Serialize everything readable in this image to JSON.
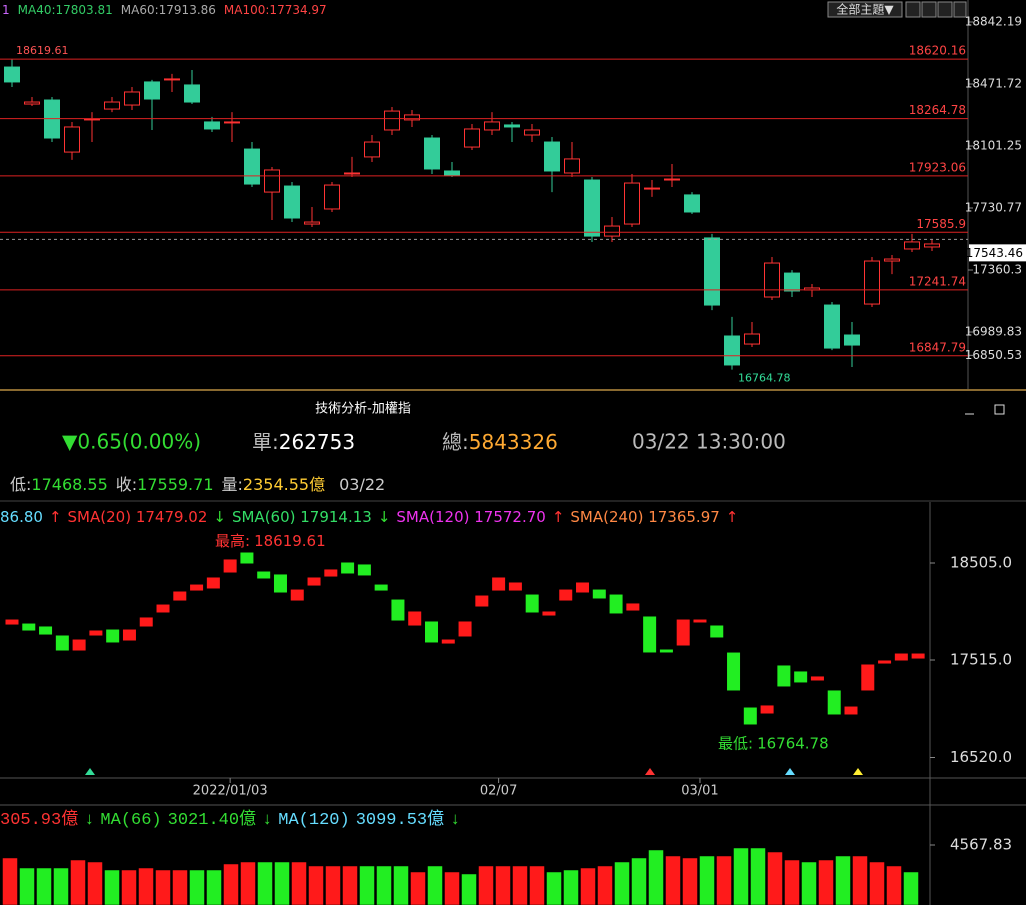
{
  "chart_data": [
    {
      "type": "candlestick",
      "header": [
        {
          "text": "1",
          "color": "#cc66ff"
        },
        {
          "text": "MA40:17803.81",
          "color": "#33cc66"
        },
        {
          "text": "MA60:17913.86",
          "color": "#aaaaaa"
        },
        {
          "text": "MA100:17734.97",
          "color": "#ff4444"
        }
      ],
      "button": "全部主題▼",
      "ylim": [
        16643.4,
        18973.6
      ],
      "yticks": [
        18842.19,
        18471.72,
        18101.25,
        17730.77,
        17360.3,
        16989.83,
        16850.53
      ],
      "levels": [
        18620.16,
        18264.78,
        17923.06,
        17585.9,
        17241.74,
        16847.79
      ],
      "last_price": 17543.46,
      "up_color": "#ff3333",
      "down_color": "#33cc99",
      "open": [
        18573,
        18352,
        18376,
        18065,
        18257,
        18322,
        18346,
        18484,
        18496,
        18466,
        18245,
        18239,
        18083,
        17826,
        17862,
        17635,
        17725,
        17934,
        18036,
        18197,
        18257,
        18149,
        17952,
        18095,
        18197,
        18227,
        18167,
        18125,
        17940,
        17898,
        17563,
        17635,
        17844,
        17898,
        17809,
        17552,
        16966,
        16918,
        17199,
        17342,
        17241,
        17151,
        16972,
        17157,
        17414,
        17486,
        17498
      ],
      "high": [
        18619.61,
        18394,
        18394,
        18245,
        18304,
        18394,
        18454,
        18496,
        18532,
        18555,
        18275,
        18304,
        18125,
        17976,
        17886,
        17737,
        17886,
        18036,
        18167,
        18334,
        18316,
        18167,
        18006,
        18233,
        18304,
        18245,
        18233,
        18155,
        18125,
        17916,
        17677,
        17934,
        17898,
        17994,
        17826,
        17576,
        17080,
        17050,
        17438,
        17360,
        17277,
        17169,
        17050,
        17438,
        17450,
        17576,
        17546
      ],
      "low": [
        18454,
        18340,
        18125,
        18018,
        18125,
        18304,
        18316,
        18197,
        18424,
        18352,
        18185,
        18125,
        17856,
        17659,
        17647,
        17617,
        17707,
        17916,
        18006,
        18167,
        18215,
        17934,
        17916,
        18077,
        18167,
        18125,
        18125,
        17826,
        17916,
        17528,
        17528,
        17617,
        17797,
        17856,
        17695,
        17121,
        16764.78,
        16900,
        17181,
        17199,
        17199,
        16882,
        16781,
        17139,
        17336,
        17468,
        17474
      ],
      "close": [
        18484,
        18364,
        18149,
        18215,
        18263,
        18364,
        18424,
        18382,
        18502,
        18364,
        18203,
        18245,
        17874,
        17958,
        17671,
        17647,
        17868,
        17940,
        18125,
        18310,
        18287,
        17964,
        17928,
        18203,
        18245,
        18215,
        18197,
        17952,
        18024,
        17563,
        17623,
        17880,
        17850,
        17904,
        17707,
        17151,
        16793,
        16978,
        17402,
        17235,
        17253,
        16894,
        16912,
        17414,
        17426,
        17528,
        17516
      ]
    },
    {
      "type": "candlestick",
      "legend": [
        {
          "text": "86.80",
          "color": "#66ddff"
        },
        {
          "text": "↑",
          "color": "#ff3333"
        },
        {
          "text": "SMA(20) 17479.02",
          "color": "#ff3333"
        },
        {
          "text": "↓",
          "color": "#33dd33"
        },
        {
          "text": "SMA(60) 17914.13",
          "color": "#33dd66"
        },
        {
          "text": "↓",
          "color": "#33dd33"
        },
        {
          "text": "SMA(120) 17572.70",
          "color": "#ee33ee"
        },
        {
          "text": "↑",
          "color": "#ff3333"
        },
        {
          "text": "SMA(240) 17365.97",
          "color": "#ff8844"
        },
        {
          "text": "↑",
          "color": "#ff3333"
        }
      ],
      "ylim": [
        16310.7,
        19127.6
      ],
      "yticks": [
        {
          "value": 18505,
          "label": "18505.0"
        },
        {
          "value": 17515,
          "label": "17515.0"
        },
        {
          "value": 16520,
          "label": "16520.0"
        }
      ],
      "categories": [
        null,
        null,
        null,
        null,
        null,
        null,
        null,
        null,
        null,
        null,
        null,
        null,
        null,
        "2022/01/03",
        null,
        null,
        null,
        null,
        null,
        null,
        null,
        null,
        null,
        null,
        null,
        null,
        null,
        null,
        null,
        "02/07",
        null,
        null,
        null,
        null,
        null,
        null,
        null,
        null,
        null,
        null,
        null,
        "03/01",
        null,
        null,
        null,
        null,
        null,
        null,
        null,
        null,
        null,
        null,
        null,
        null,
        null
      ],
      "annotations": [
        {
          "label": "最高:",
          "value": 18619.61,
          "color": "#ff3333"
        },
        {
          "label": "最低:",
          "value": 16764.78,
          "color": "#33dd33"
        }
      ],
      "up_color": "#ff1a1a",
      "down_color": "#22ee22",
      "open": [
        17882,
        17882,
        17852,
        17760,
        17617,
        17770,
        17821,
        17719,
        17862,
        18005,
        18127,
        18229,
        18250,
        18413,
        18607,
        18413,
        18383,
        18127,
        18280,
        18372,
        18505,
        18485,
        18280,
        18127,
        17872,
        17903,
        17688,
        17760,
        18066,
        18229,
        18229,
        18178,
        17974,
        18127,
        18209,
        18229,
        18178,
        18025,
        17954,
        17617,
        17668,
        17903,
        17862,
        17586,
        17025,
        16974,
        17454,
        17393,
        17311,
        17199,
        16964,
        17209,
        17484,
        17515,
        17535
      ],
      "close": [
        17923,
        17821,
        17780,
        17617,
        17719,
        17811,
        17699,
        17821,
        17944,
        18076,
        18209,
        18280,
        18352,
        18536,
        18505,
        18352,
        18209,
        18229,
        18352,
        18434,
        18403,
        18383,
        18229,
        17923,
        18005,
        17699,
        17719,
        17903,
        18168,
        18352,
        18301,
        18005,
        18005,
        18229,
        18301,
        18148,
        17995,
        18087,
        17597,
        17597,
        17923,
        17923,
        17750,
        17209,
        16862,
        17046,
        17250,
        17291,
        17342,
        16964,
        17035,
        17464,
        17505,
        17576,
        17576
      ]
    },
    {
      "type": "bar",
      "legend": [
        {
          "text": "305.93億",
          "color": "#ff3333"
        },
        {
          "text": "↓",
          "color": "#33dd33"
        },
        {
          "text": "MA(66)",
          "color": "#33dd33"
        },
        {
          "text": "3021.40億",
          "color": "#33dd33"
        },
        {
          "text": "↓",
          "color": "#33dd33"
        },
        {
          "text": "MA(120)",
          "color": "#66ddff"
        },
        {
          "text": "3099.53億",
          "color": "#66ddff"
        },
        {
          "text": "↓",
          "color": "#33dd33"
        }
      ],
      "ylim": [
        2610,
        5840
      ],
      "yticks": [
        4567.83
      ],
      "values": [
        4144,
        3817,
        3817,
        3817,
        4078,
        4013,
        3752,
        3752,
        3817,
        3752,
        3752,
        3752,
        3752,
        3948,
        4013,
        4013,
        4013,
        4013,
        3883,
        3883,
        3883,
        3883,
        3883,
        3883,
        3687,
        3883,
        3687,
        3622,
        3883,
        3883,
        3883,
        3883,
        3687,
        3752,
        3817,
        3883,
        4013,
        4144,
        4405,
        4209,
        4144,
        4209,
        4209,
        4470,
        4470,
        4339,
        4078,
        4013,
        4078,
        4209,
        4209,
        4013,
        3883,
        3687
      ],
      "colors": [
        "#ff1a1a",
        "#22ee22",
        "#22ee22",
        "#22ee22",
        "#ff1a1a",
        "#ff1a1a",
        "#22ee22",
        "#ff1a1a",
        "#ff1a1a",
        "#ff1a1a",
        "#ff1a1a",
        "#22ee22",
        "#22ee22",
        "#ff1a1a",
        "#ff1a1a",
        "#22ee22",
        "#22ee22",
        "#ff1a1a",
        "#ff1a1a",
        "#ff1a1a",
        "#ff1a1a",
        "#22ee22",
        "#22ee22",
        "#22ee22",
        "#ff1a1a",
        "#22ee22",
        "#ff1a1a",
        "#22ee22",
        "#ff1a1a",
        "#ff1a1a",
        "#ff1a1a",
        "#ff1a1a",
        "#22ee22",
        "#22ee22",
        "#ff1a1a",
        "#ff1a1a",
        "#22ee22",
        "#22ee22",
        "#22ee22",
        "#ff1a1a",
        "#ff1a1a",
        "#22ee22",
        "#ff1a1a",
        "#22ee22",
        "#22ee22",
        "#ff1a1a",
        "#ff1a1a",
        "#22ee22",
        "#ff1a1a",
        "#22ee22",
        "#ff1a1a",
        "#ff1a1a",
        "#ff1a1a",
        "#22ee22"
      ]
    }
  ],
  "info": {
    "title": "技術分析-加權指",
    "change": "▼0.65(0.00%)",
    "single": {
      "label": "單:",
      "value": 262753
    },
    "total": {
      "label": "總:",
      "value": 5843326
    },
    "time": "03/22 13:30:00",
    "low": {
      "label": "低:",
      "value": 17468.55
    },
    "close": {
      "label": "收:",
      "value": 17559.71
    },
    "volume": {
      "label": "量:",
      "value": 2354.55,
      "unit": "億"
    },
    "date": "03/22"
  }
}
